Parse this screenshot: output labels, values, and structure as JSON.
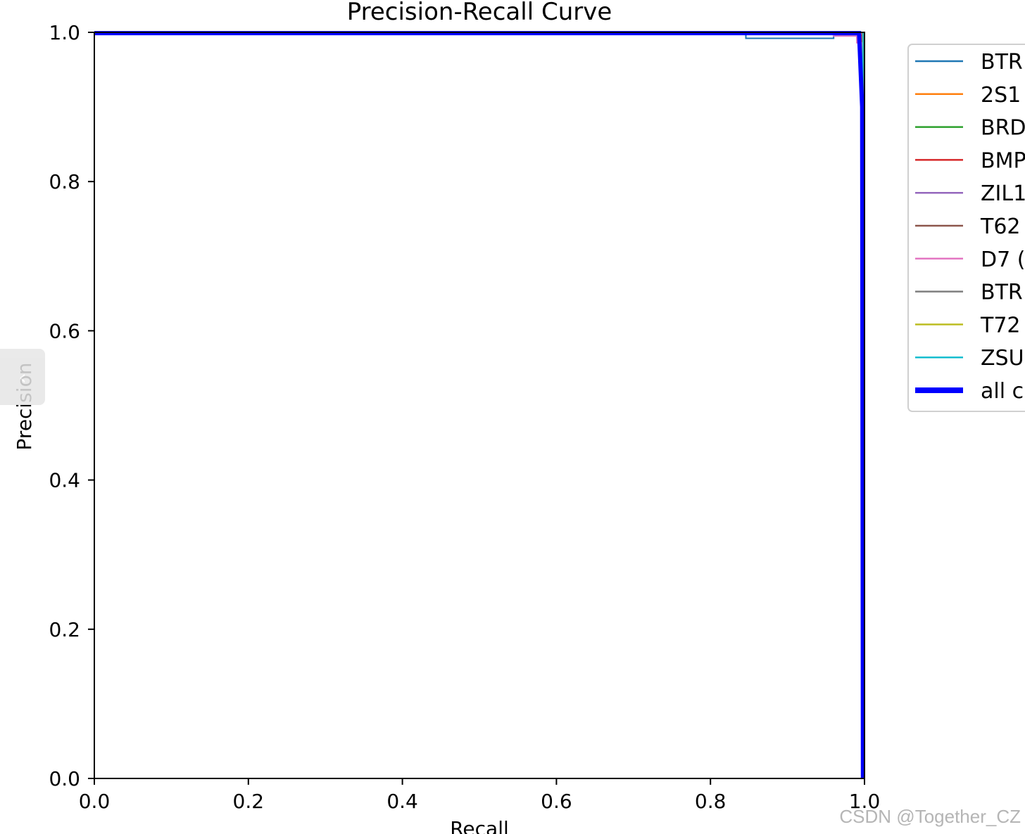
{
  "chart_data": {
    "type": "line",
    "title": "Precision-Recall Curve",
    "xlabel": "Recall",
    "ylabel": "Precision",
    "xlim": [
      0,
      1
    ],
    "ylim": [
      0,
      1
    ],
    "xticks": [
      "0.0",
      "0.2",
      "0.4",
      "0.6",
      "0.8",
      "1.0"
    ],
    "yticks": [
      "0.0",
      "0.2",
      "0.4",
      "0.6",
      "0.8",
      "1.0"
    ],
    "grid": false,
    "legend_position": "outside-right",
    "series": [
      {
        "name": "BTR",
        "color": "#1f77b4",
        "width": 2,
        "points": [
          [
            0,
            1.0
          ],
          [
            0.846,
            1.0
          ],
          [
            0.846,
            0.992
          ],
          [
            0.96,
            0.992
          ],
          [
            0.96,
            0.996
          ],
          [
            0.998,
            0.996
          ],
          [
            0.999,
            0.5
          ],
          [
            0.999,
            0.0
          ]
        ]
      },
      {
        "name": "2S1",
        "color": "#ff7f0e",
        "width": 2,
        "points": [
          [
            0,
            1.0
          ],
          [
            0.997,
            1.0
          ],
          [
            0.998,
            0.6
          ],
          [
            0.998,
            0.0
          ]
        ]
      },
      {
        "name": "BRD",
        "color": "#2ca02c",
        "width": 2,
        "points": [
          [
            0,
            1.0
          ],
          [
            0.998,
            1.0
          ],
          [
            0.998,
            0.0
          ]
        ]
      },
      {
        "name": "BMP",
        "color": "#d62728",
        "width": 2,
        "points": [
          [
            0,
            1.0
          ],
          [
            0.997,
            1.0
          ],
          [
            0.998,
            0.0
          ]
        ]
      },
      {
        "name": "ZIL1",
        "color": "#9467bd",
        "width": 2,
        "points": [
          [
            0,
            1.0
          ],
          [
            0.998,
            1.0
          ],
          [
            0.998,
            0.0
          ]
        ]
      },
      {
        "name": "T62",
        "color": "#8c564b",
        "width": 2,
        "points": [
          [
            0,
            1.0
          ],
          [
            0.998,
            1.0
          ],
          [
            0.998,
            0.0
          ]
        ]
      },
      {
        "name": "D7 (",
        "color": "#e377c2",
        "width": 2,
        "points": [
          [
            0,
            1.0
          ],
          [
            0.96,
            1.0
          ],
          [
            0.96,
            0.995
          ],
          [
            0.99,
            0.995
          ],
          [
            0.99,
            0.986
          ],
          [
            0.996,
            0.986
          ],
          [
            0.997,
            0.4
          ],
          [
            0.997,
            0.0
          ]
        ]
      },
      {
        "name": "BTR",
        "color": "#7f7f7f",
        "width": 2,
        "points": [
          [
            0,
            1.0
          ],
          [
            0.998,
            1.0
          ],
          [
            0.998,
            0.0
          ]
        ]
      },
      {
        "name": "T72",
        "color": "#bcbd22",
        "width": 2,
        "points": [
          [
            0,
            1.0
          ],
          [
            0.998,
            1.0
          ],
          [
            0.998,
            0.0
          ]
        ]
      },
      {
        "name": "ZSU",
        "color": "#17becf",
        "width": 2,
        "points": [
          [
            0,
            1.0
          ],
          [
            0.998,
            1.0
          ],
          [
            0.998,
            0.0
          ]
        ]
      },
      {
        "name": "all c",
        "color": "#0000ff",
        "width": 6,
        "points": [
          [
            0,
            0.999
          ],
          [
            0.993,
            0.999
          ],
          [
            0.997,
            0.9
          ],
          [
            0.998,
            0.0
          ]
        ]
      }
    ]
  },
  "watermark": "CSDN @Together_CZ",
  "nav_tab": {
    "icon": "chevron-left-icon",
    "glyph": "‹"
  }
}
